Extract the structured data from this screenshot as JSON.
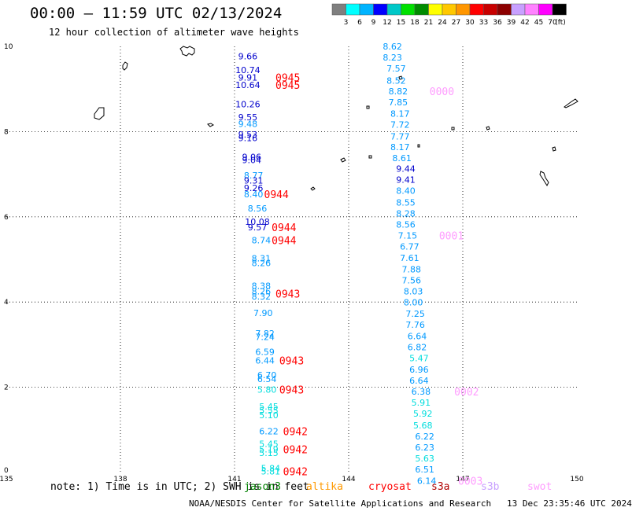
{
  "title": "00:00 – 11:59 UTC 02/13/2024",
  "subtitle": "12 hour collection of altimeter wave heights",
  "legend": {
    "labels": [
      "3",
      "6",
      "9",
      "12",
      "15",
      "18",
      "21",
      "24",
      "27",
      "30",
      "33",
      "36",
      "39",
      "42",
      "45",
      "70"
    ],
    "unit": "(ft)",
    "colors": [
      "#7f7f7f",
      "#00ffff",
      "#00b4ff",
      "#0000ff",
      "#00c8c8",
      "#00e100",
      "#008c00",
      "#ffff00",
      "#ffc800",
      "#ff9600",
      "#ff0000",
      "#c80000",
      "#8c0000",
      "#c8a0ff",
      "#ff82ff",
      "#ff00ff",
      "#000000"
    ]
  },
  "note": "note: 1) Time is in UTC; 2) SWH is in feet",
  "satellites": [
    {
      "name": "jason3",
      "color": "#008000"
    },
    {
      "name": "altika",
      "color": "#ff9900"
    },
    {
      "name": "cryosat",
      "color": "#ff0000"
    },
    {
      "name": "s3a",
      "color": "#b00000"
    },
    {
      "name": "s3b",
      "color": "#c8a0ff"
    },
    {
      "name": "swot",
      "color": "#ff9cff"
    }
  ],
  "credit": "NOAA/NESDIS Center for Satellite Applications and Research   13 Dec 23:35:46 UTC 2024",
  "chart_data": {
    "type": "scatter",
    "xlim": [
      135,
      150
    ],
    "ylim": [
      0,
      10
    ],
    "xticks": [
      "135",
      "138",
      "141",
      "144",
      "147",
      "150"
    ],
    "yticks": [
      "0",
      "2",
      "4",
      "6",
      "8",
      "10"
    ],
    "grid": true,
    "tracks": [
      {
        "points": [
          {
            "x": 141.35,
            "y": 9.77,
            "v": "9.66",
            "c": "#0000cc"
          },
          {
            "x": 141.35,
            "y": 9.45,
            "v": "10.74",
            "c": "#0000cc"
          },
          {
            "x": 141.35,
            "y": 9.27,
            "v": "9.91",
            "c": "#0000cc"
          },
          {
            "x": 141.35,
            "y": 9.1,
            "v": "10.64",
            "c": "#0000cc"
          },
          {
            "x": 141.35,
            "y": 8.64,
            "v": "10.26",
            "c": "#0000cc"
          },
          {
            "x": 141.35,
            "y": 8.34,
            "v": "9.55",
            "c": "#0000cc"
          },
          {
            "x": 141.35,
            "y": 8.18,
            "v": "9.48",
            "c": "#0099ff"
          },
          {
            "x": 141.35,
            "y": 7.93,
            "v": "9.53",
            "c": "#0000cc"
          },
          {
            "x": 141.35,
            "y": 7.85,
            "v": "9.16",
            "c": "#0000cc"
          },
          {
            "x": 141.45,
            "y": 7.41,
            "v": "9.06",
            "c": "#0000cc"
          },
          {
            "x": 141.45,
            "y": 7.33,
            "v": "9.04",
            "c": "#0000cc"
          },
          {
            "x": 141.5,
            "y": 6.97,
            "v": "8.77",
            "c": "#0099ff"
          },
          {
            "x": 141.5,
            "y": 6.85,
            "v": "9.31",
            "c": "#0000cc"
          },
          {
            "x": 141.5,
            "y": 6.68,
            "v": "9.26",
            "c": "#0000cc"
          },
          {
            "x": 141.5,
            "y": 6.53,
            "v": "8.40",
            "c": "#0099ff"
          },
          {
            "x": 141.6,
            "y": 6.2,
            "v": "8.56",
            "c": "#0099ff"
          },
          {
            "x": 141.6,
            "y": 5.89,
            "v": "10.08",
            "c": "#0000cc"
          },
          {
            "x": 141.6,
            "y": 5.76,
            "v": "9.57",
            "c": "#0000cc"
          },
          {
            "x": 141.7,
            "y": 5.45,
            "v": "8.74",
            "c": "#0099ff"
          },
          {
            "x": 141.7,
            "y": 5.03,
            "v": "8.31",
            "c": "#0099ff"
          },
          {
            "x": 141.7,
            "y": 4.92,
            "v": "8.26",
            "c": "#0099ff"
          },
          {
            "x": 141.7,
            "y": 4.38,
            "v": "8.38",
            "c": "#0099ff"
          },
          {
            "x": 141.7,
            "y": 4.25,
            "v": "8.26",
            "c": "#0099ff"
          },
          {
            "x": 141.7,
            "y": 4.13,
            "v": "8.32",
            "c": "#0099ff"
          },
          {
            "x": 141.75,
            "y": 3.75,
            "v": "7.90",
            "c": "#0099ff"
          },
          {
            "x": 141.8,
            "y": 3.27,
            "v": "7.82",
            "c": "#0099ff"
          },
          {
            "x": 141.8,
            "y": 3.18,
            "v": "7.24",
            "c": "#0099ff"
          },
          {
            "x": 141.8,
            "y": 2.83,
            "v": "6.59",
            "c": "#0099ff"
          },
          {
            "x": 141.8,
            "y": 2.63,
            "v": "6.44",
            "c": "#0099ff"
          },
          {
            "x": 141.85,
            "y": 2.29,
            "v": "6.70",
            "c": "#0099ff"
          },
          {
            "x": 141.85,
            "y": 2.2,
            "v": "6.54",
            "c": "#0099ff"
          },
          {
            "x": 141.85,
            "y": 1.95,
            "v": "5.80",
            "c": "#00dddd"
          },
          {
            "x": 141.9,
            "y": 1.55,
            "v": "5.45",
            "c": "#00dddd"
          },
          {
            "x": 141.9,
            "y": 1.46,
            "v": "5.55",
            "c": "#00dddd"
          },
          {
            "x": 141.9,
            "y": 1.35,
            "v": "5.10",
            "c": "#00dddd"
          },
          {
            "x": 141.9,
            "y": 0.97,
            "v": "6.22",
            "c": "#0099ff"
          },
          {
            "x": 141.9,
            "y": 0.67,
            "v": "5.45",
            "c": "#00dddd"
          },
          {
            "x": 141.9,
            "y": 0.54,
            "v": "5.19",
            "c": "#00dddd"
          },
          {
            "x": 141.9,
            "y": 0.46,
            "v": "5.15",
            "c": "#00dddd"
          },
          {
            "x": 141.95,
            "y": 0.1,
            "v": "5.84",
            "c": "#00dddd"
          },
          {
            "x": 141.95,
            "y": 0.03,
            "v": "5.81",
            "c": "#00dddd"
          }
        ],
        "times": [
          {
            "x": 142.4,
            "y": 9.27,
            "t": "0945",
            "c": "#ff0000"
          },
          {
            "x": 142.4,
            "y": 9.1,
            "t": "0945",
            "c": "#ff0000"
          },
          {
            "x": 142.1,
            "y": 6.53,
            "t": "0944",
            "c": "#ff0000"
          },
          {
            "x": 142.3,
            "y": 5.76,
            "t": "0944",
            "c": "#ff0000"
          },
          {
            "x": 142.3,
            "y": 5.45,
            "t": "0944",
            "c": "#ff0000"
          },
          {
            "x": 142.4,
            "y": 4.2,
            "t": "0943",
            "c": "#ff0000"
          },
          {
            "x": 142.5,
            "y": 2.63,
            "t": "0943",
            "c": "#ff0000"
          },
          {
            "x": 142.5,
            "y": 1.95,
            "t": "0943",
            "c": "#ff0000"
          },
          {
            "x": 142.6,
            "y": 0.97,
            "t": "0942",
            "c": "#ff0000"
          },
          {
            "x": 142.6,
            "y": 0.54,
            "t": "0942",
            "c": "#ff0000"
          },
          {
            "x": 142.6,
            "y": 0.03,
            "t": "0942",
            "c": "#ff0000"
          }
        ]
      },
      {
        "points": [
          {
            "x": 145.15,
            "y": 10,
            "v": "8.62",
            "c": "#0099ff"
          },
          {
            "x": 145.15,
            "y": 9.74,
            "v": "8.23",
            "c": "#0099ff"
          },
          {
            "x": 145.25,
            "y": 9.48,
            "v": "7.57",
            "c": "#0099ff"
          },
          {
            "x": 145.25,
            "y": 9.2,
            "v": "8.52",
            "c": "#0099ff"
          },
          {
            "x": 145.3,
            "y": 8.95,
            "v": "8.82",
            "c": "#0099ff"
          },
          {
            "x": 145.3,
            "y": 8.69,
            "v": "7.85",
            "c": "#0099ff"
          },
          {
            "x": 145.35,
            "y": 8.42,
            "v": "8.17",
            "c": "#0099ff"
          },
          {
            "x": 145.35,
            "y": 8.16,
            "v": "7.72",
            "c": "#0099ff"
          },
          {
            "x": 145.35,
            "y": 7.89,
            "v": "7.77",
            "c": "#0099ff"
          },
          {
            "x": 145.35,
            "y": 7.64,
            "v": "8.17",
            "c": "#0099ff"
          },
          {
            "x": 145.4,
            "y": 7.38,
            "v": "8.61",
            "c": "#0099ff"
          },
          {
            "x": 145.5,
            "y": 7.13,
            "v": "9.44",
            "c": "#0000cc"
          },
          {
            "x": 145.5,
            "y": 6.87,
            "v": "9.41",
            "c": "#0000cc"
          },
          {
            "x": 145.5,
            "y": 6.61,
            "v": "8.40",
            "c": "#0099ff"
          },
          {
            "x": 145.5,
            "y": 6.34,
            "v": "8.55",
            "c": "#0099ff"
          },
          {
            "x": 145.5,
            "y": 6.08,
            "v": "8.28",
            "c": "#0099ff"
          },
          {
            "x": 145.5,
            "y": 5.82,
            "v": "8.56",
            "c": "#0099ff"
          },
          {
            "x": 145.55,
            "y": 5.56,
            "v": "7.15",
            "c": "#0099ff"
          },
          {
            "x": 145.6,
            "y": 5.3,
            "v": "6.77",
            "c": "#0099ff"
          },
          {
            "x": 145.6,
            "y": 5.04,
            "v": "7.61",
            "c": "#0099ff"
          },
          {
            "x": 145.65,
            "y": 4.77,
            "v": "7.88",
            "c": "#0099ff"
          },
          {
            "x": 145.65,
            "y": 4.51,
            "v": "7.56",
            "c": "#0099ff"
          },
          {
            "x": 145.7,
            "y": 4.25,
            "v": "8.03",
            "c": "#0099ff"
          },
          {
            "x": 145.7,
            "y": 3.99,
            "v": "8.00",
            "c": "#0099ff"
          },
          {
            "x": 145.75,
            "y": 3.73,
            "v": "7.25",
            "c": "#0099ff"
          },
          {
            "x": 145.75,
            "y": 3.47,
            "v": "7.76",
            "c": "#0099ff"
          },
          {
            "x": 145.8,
            "y": 3.2,
            "v": "6.64",
            "c": "#0099ff"
          },
          {
            "x": 145.8,
            "y": 2.94,
            "v": "6.82",
            "c": "#0099ff"
          },
          {
            "x": 145.85,
            "y": 2.68,
            "v": "5.47",
            "c": "#00dddd"
          },
          {
            "x": 145.85,
            "y": 2.42,
            "v": "6.96",
            "c": "#0099ff"
          },
          {
            "x": 145.85,
            "y": 2.16,
            "v": "6.64",
            "c": "#0099ff"
          },
          {
            "x": 145.9,
            "y": 1.9,
            "v": "6.38",
            "c": "#0099ff"
          },
          {
            "x": 145.9,
            "y": 1.64,
            "v": "5.91",
            "c": "#00dddd"
          },
          {
            "x": 145.95,
            "y": 1.38,
            "v": "5.92",
            "c": "#00dddd"
          },
          {
            "x": 145.95,
            "y": 1.11,
            "v": "5.68",
            "c": "#00dddd"
          },
          {
            "x": 146.0,
            "y": 0.85,
            "v": "6.22",
            "c": "#0099ff"
          },
          {
            "x": 146.0,
            "y": 0.59,
            "v": "6.23",
            "c": "#0099ff"
          },
          {
            "x": 146.0,
            "y": 0.33,
            "v": "5.63",
            "c": "#00dddd"
          },
          {
            "x": 146.0,
            "y": 0.07,
            "v": "6.51",
            "c": "#0099ff"
          },
          {
            "x": 146.05,
            "y": -0.19,
            "v": "6.14",
            "c": "#0099ff"
          }
        ],
        "times": [
          {
            "x": 146.45,
            "y": 8.95,
            "t": "0000",
            "c": "#ff9cff"
          },
          {
            "x": 146.7,
            "y": 5.56,
            "t": "0001",
            "c": "#ff9cff"
          },
          {
            "x": 147.1,
            "y": 1.9,
            "t": "0002",
            "c": "#ff9cff"
          },
          {
            "x": 147.2,
            "y": -0.19,
            "t": "0003",
            "c": "#ff9cff"
          }
        ]
      }
    ]
  }
}
